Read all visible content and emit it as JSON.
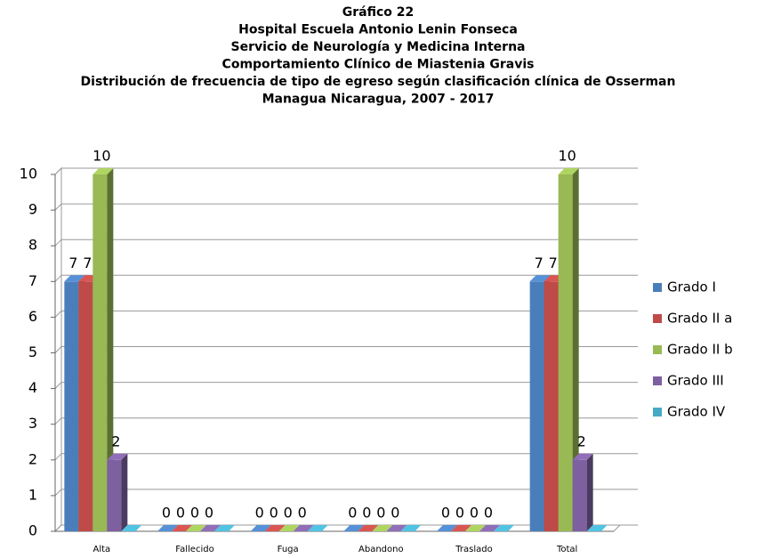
{
  "chart_data": {
    "type": "bar",
    "title": [
      "Gráfico 22",
      "Hospital Escuela Antonio Lenin Fonseca",
      "Servicio de Neurología y Medicina Interna",
      "Comportamiento Clínico de Miastenia Gravis",
      "Distribución  de frecuencia de tipo de egreso según clasificación clínica de Osserman",
      "Managua Nicaragua, 2007 - 2017"
    ],
    "categories": [
      "Alta",
      "Fallecido",
      "Fuga",
      "Abandono",
      "Traslado",
      "Total"
    ],
    "series": [
      {
        "name": "Grado I",
        "color": "#4a7ebb",
        "values": [
          7,
          0,
          0,
          0,
          0,
          7
        ]
      },
      {
        "name": "Grado II a",
        "color": "#be4b48",
        "values": [
          7,
          0,
          0,
          0,
          0,
          7
        ]
      },
      {
        "name": "Grado II b",
        "color": "#98b954",
        "values": [
          10,
          0,
          0,
          0,
          0,
          10
        ]
      },
      {
        "name": "Grado III",
        "color": "#7d60a0",
        "values": [
          2,
          0,
          0,
          0,
          0,
          2
        ]
      },
      {
        "name": "Grado IV",
        "color": "#46aac5",
        "values": [
          0,
          0,
          0,
          0,
          0,
          0
        ]
      }
    ],
    "ylim": [
      0,
      10
    ],
    "yticks": [
      0,
      1,
      2,
      3,
      4,
      5,
      6,
      7,
      8,
      9,
      10
    ],
    "grid": true,
    "legend": "right"
  }
}
